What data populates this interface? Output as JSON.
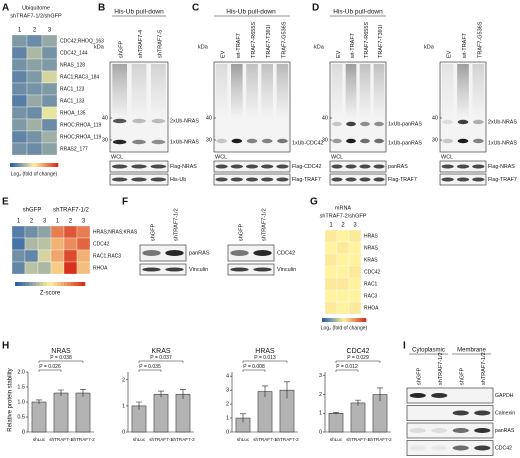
{
  "panels": {
    "A": {
      "label": "A",
      "title": "Ubiquitome",
      "subtitle": "shTRAF7-1/2/shGFP",
      "columns": [
        "1",
        "2",
        "3"
      ],
      "rows": [
        "CDC42;RHOQ_163",
        "CDC42_144",
        "NRAS_128",
        "RAC1;RAC3_184",
        "RAC1_123",
        "RAC1_133",
        "RHOA_135",
        "RHOC;RHOA_119",
        "RHOC;RHOA_119",
        "RRAS2_177"
      ],
      "values": [
        [
          -1.2,
          -1.4,
          -1.0
        ],
        [
          -1.5,
          -0.8,
          -1.3
        ],
        [
          -1.3,
          -1.1,
          -1.2
        ],
        [
          -1.5,
          -1.2,
          -0.4
        ],
        [
          -1.4,
          -1.3,
          -1.2
        ],
        [
          -1.6,
          -1.0,
          -1.3
        ],
        [
          -1.3,
          -1.4,
          -0.2
        ],
        [
          -1.2,
          -0.9,
          -1.4
        ],
        [
          -1.5,
          -1.3,
          -0.9
        ],
        [
          -1.3,
          -1.4,
          -1.1
        ]
      ],
      "color_range": [
        -2,
        2
      ],
      "legend_title": "Log₂ (fold of change)"
    },
    "B": {
      "label": "B",
      "header": "His-Ub pull-down",
      "kda_unit": "kDa",
      "kda": [
        40,
        30
      ],
      "lanes": [
        "shGFP",
        "shTRAF7-4",
        "shTRAF7-5"
      ],
      "bands": [
        "2xUb-NRAS",
        "1xUb-NRAS"
      ],
      "wcl_title": "WCL",
      "wcl": [
        "Flag-NRAS",
        "His-Ub"
      ]
    },
    "C": {
      "label": "C",
      "header": "His-Ub pull-down",
      "kda_unit": "kDa",
      "kda": [
        40,
        30
      ],
      "lanes": [
        "EV",
        "wt-TRAF7",
        "TRAF7-R655S",
        "TRAF7-T391I",
        "TRAF7-G536S"
      ],
      "bands": [
        "1xUb-CDC42"
      ],
      "wcl_title": "WCL",
      "wcl": [
        "Flag-CDC42",
        "Flag-TRAF7"
      ]
    },
    "D": {
      "label": "D",
      "header": "His-Ub pull-down",
      "left": {
        "kda_unit": "kDa",
        "kda": [
          40,
          30
        ],
        "lanes": [
          "EV",
          "wt-TRAF7",
          "TRAF7-R655S",
          "TRAF7-T391I"
        ],
        "bands": [
          "1xUb-panRAS",
          "1xUb-panRAS"
        ],
        "wcl_title": "WCL",
        "wcl": [
          "panRAS",
          "Flag-TRAF7"
        ]
      },
      "right": {
        "kda_unit": "kDa",
        "kda": [
          40,
          30
        ],
        "lanes": [
          "EV",
          "wt-TRAF7",
          "TRAF7-G536S"
        ],
        "bands": [
          "2xUb-NRAS",
          "1xUb-NRAS"
        ],
        "wcl_title": "WCL",
        "wcl": [
          "Flag-NRAS",
          "Flag-TRAF7"
        ]
      }
    },
    "E": {
      "label": "E",
      "groups": [
        "shGFP",
        "shTRAF7-1/2"
      ],
      "columns": [
        "1",
        "2",
        "3",
        "1",
        "2",
        "3"
      ],
      "rows": [
        "HRAS;NRAS;KRAS",
        "CDC42",
        "RAC1;RAC3",
        "RHOA"
      ],
      "values": [
        [
          -1.2,
          -1.0,
          -0.8,
          0.9,
          1.2,
          0.9
        ],
        [
          -1.3,
          -0.6,
          -0.5,
          0.5,
          0.8,
          1.1
        ],
        [
          -1.0,
          -1.1,
          -0.3,
          0.6,
          1.3,
          0.5
        ],
        [
          -1.1,
          -0.5,
          -0.6,
          0.3,
          1.5,
          0.4
        ]
      ],
      "color_range": [
        -1.5,
        1.5
      ],
      "legend_title": "Z-score"
    },
    "F": {
      "label": "F",
      "blots": [
        {
          "lanes": [
            "shGFP",
            "shTRAF7-1/2"
          ],
          "rows": [
            "panRAS",
            "Vinculin"
          ]
        },
        {
          "lanes": [
            "shGFP",
            "shTRAF7-1/2"
          ],
          "rows": [
            "CDC42",
            "Vinculin"
          ]
        }
      ]
    },
    "G": {
      "label": "G",
      "title": "mRNA",
      "subtitle": "shTRAF7-2/shGFP",
      "columns": [
        "1",
        "2",
        "3"
      ],
      "rows": [
        "HRAS",
        "NRAS",
        "KRAS",
        "CDC42",
        "RAC1",
        "RAC3",
        "RHOA"
      ],
      "values": [
        [
          0.1,
          0.0,
          0.1
        ],
        [
          0.0,
          0.1,
          0.0
        ],
        [
          0.1,
          0.0,
          0.0
        ],
        [
          0.0,
          0.0,
          0.1
        ],
        [
          0.1,
          0.1,
          0.0
        ],
        [
          0.0,
          0.0,
          0.0
        ],
        [
          0.1,
          0.0,
          0.1
        ]
      ],
      "color_range": [
        -2,
        2
      ],
      "legend_title": "Log₂ (fold of change)"
    },
    "H": {
      "label": "H",
      "ylabel": "Relative protein stability",
      "charts": [
        {
          "type": "bar",
          "title": "NRAS",
          "categories": [
            "shLuc",
            "shTRAF7-1",
            "shTRAF7-2"
          ],
          "values": [
            1.0,
            1.3,
            1.3
          ],
          "errors": [
            0.07,
            0.1,
            0.12
          ],
          "ylim": [
            0,
            2
          ],
          "yticks": [
            0,
            0.5,
            {
              "value": 1,
              "label": "1.0"
            },
            1.5,
            {
              "value": 2,
              "label": "2.0"
            }
          ],
          "p_values": [
            "P = 0.038",
            "P = 0.026"
          ]
        },
        {
          "type": "bar",
          "title": "KRAS",
          "categories": [
            "shLuc",
            "shTRAF7-1",
            "shTRAF7-2"
          ],
          "values": [
            1.0,
            1.45,
            1.45
          ],
          "errors": [
            0.15,
            0.12,
            0.18
          ],
          "ylim": [
            0,
            2.3
          ],
          "yticks": [
            0,
            1,
            2
          ],
          "p_values": [
            "P = 0.037",
            "P = 0.035"
          ]
        },
        {
          "type": "bar",
          "title": "HRAS",
          "categories": [
            "shLuc",
            "shTRAF7-1",
            "shTRAF7-2"
          ],
          "values": [
            1.0,
            2.9,
            3.0
          ],
          "errors": [
            0.3,
            0.4,
            0.6
          ],
          "ylim": [
            0,
            4.3
          ],
          "yticks": [
            0,
            1,
            2,
            3,
            4
          ],
          "p_values": [
            "P = 0.013",
            "P = 0.008"
          ]
        },
        {
          "type": "bar",
          "title": "CDC42",
          "categories": [
            "shLuc",
            "shTRAF7-1",
            "shTRAF7-2"
          ],
          "values": [
            1.0,
            1.55,
            2.0
          ],
          "errors": [
            0.05,
            0.15,
            0.35
          ],
          "ylim": [
            0,
            3.2
          ],
          "yticks": [
            0,
            1,
            2,
            3
          ],
          "p_values": [
            "P = 0.029",
            "P = 0.012"
          ]
        }
      ],
      "color": "#b3b3b3"
    },
    "I": {
      "label": "I",
      "groups": [
        "Cytoplasmic",
        "Membrane"
      ],
      "lanes": [
        "shGFP",
        "shTRAF7-1/2",
        "shGFP",
        "shTRAF7-1/2"
      ],
      "rows": [
        "GAPDH",
        "Calnexin",
        "panRAS",
        "CDC42"
      ]
    }
  }
}
